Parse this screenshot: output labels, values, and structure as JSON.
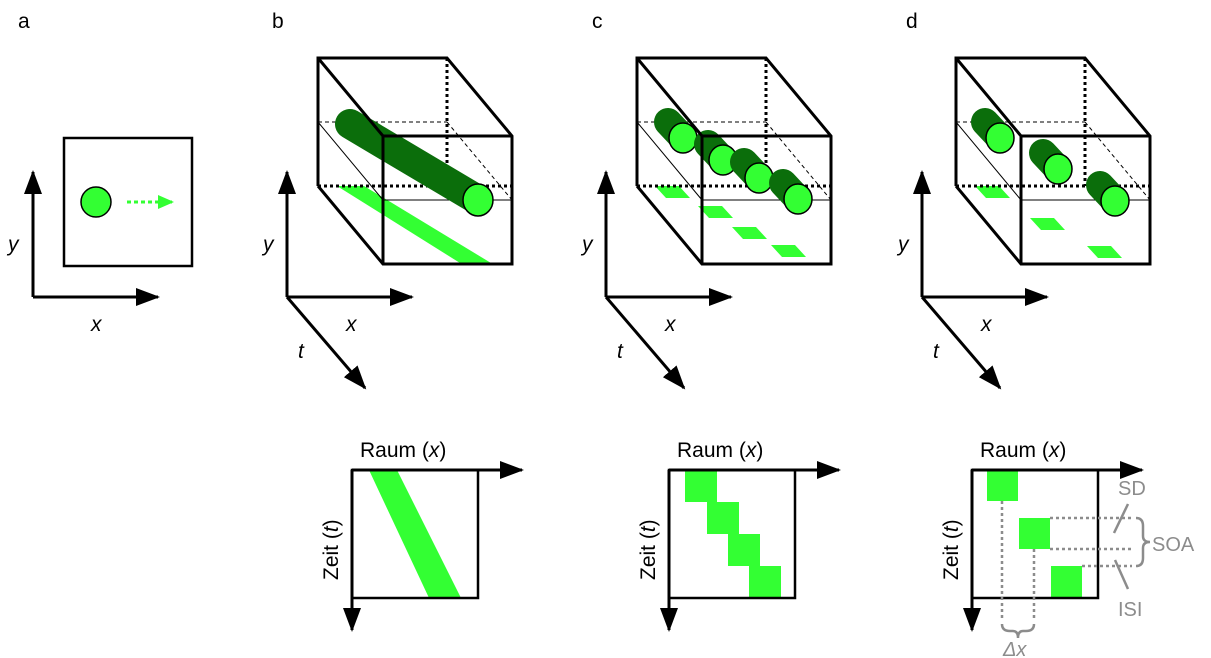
{
  "panels": {
    "a": {
      "letter": "a",
      "x_axis": "x",
      "y_axis": "y"
    },
    "b": {
      "letter": "b",
      "x_axis": "x",
      "y_axis": "y",
      "t_axis": "t",
      "space_prefix": "Raum (",
      "space_var": "x",
      "space_suffix": ")",
      "time_prefix": "Zeit (",
      "time_var": "t",
      "time_suffix": ")"
    },
    "c": {
      "letter": "c",
      "x_axis": "x",
      "y_axis": "y",
      "t_axis": "t",
      "space_prefix": "Raum (",
      "space_var": "x",
      "space_suffix": ")",
      "time_prefix": "Zeit (",
      "time_var": "t",
      "time_suffix": ")"
    },
    "d": {
      "letter": "d",
      "x_axis": "x",
      "y_axis": "y",
      "t_axis": "t",
      "space_prefix": "Raum (",
      "space_var": "x",
      "space_suffix": ")",
      "time_prefix": "Zeit (",
      "time_var": "t",
      "time_suffix": ")",
      "sd_label": "SD",
      "soa_label": "SOA",
      "isi_label": "ISI",
      "dx_label": "Δx"
    }
  },
  "colors": {
    "stimulus": "#33ff33",
    "tube_dark": "#0b6e0b",
    "annotation": "#8c8c8c"
  }
}
